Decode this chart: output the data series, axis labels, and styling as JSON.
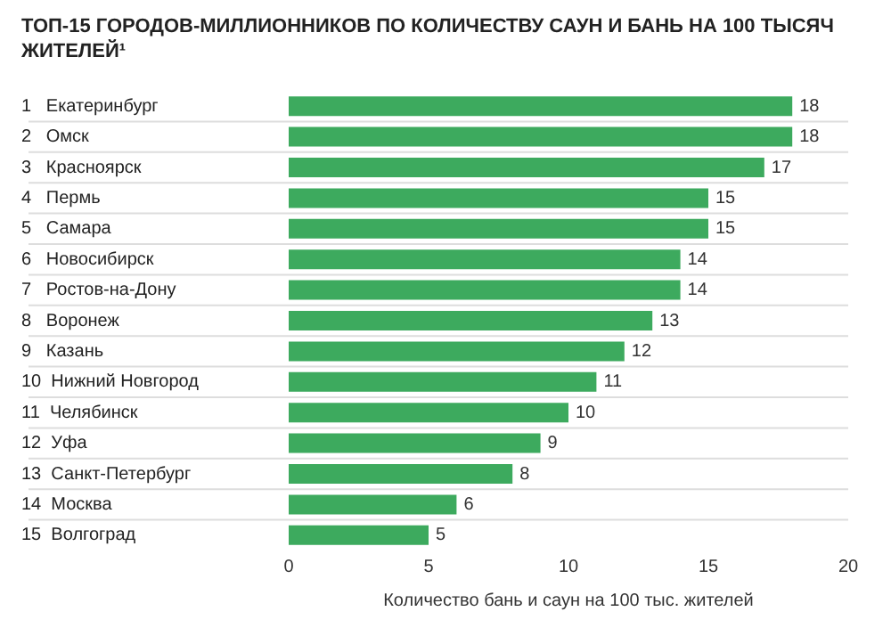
{
  "chart_data": {
    "type": "bar",
    "orientation": "horizontal",
    "title": "ТОП-15 ГОРОДОВ-МИЛЛИОННИКОВ ПО КОЛИЧЕСТВУ САУН И БАНЬ НА 100 ТЫСЯЧ ЖИТЕЛЕЙ¹",
    "xlabel": "Количество бань и саун на 100 тыс. жителей",
    "categories": [
      "1   Екатеринбург",
      "2   Омск",
      "3   Красноярск",
      "4   Пермь",
      "5   Самара",
      "6   Новосибирск",
      "7   Ростов-на-Дону",
      "8   Воронеж",
      "9   Казань",
      "10  Нижний Новгород",
      "11  Челябинск",
      "12  Уфа",
      "13  Санкт-Петербург",
      "14  Москва",
      "15  Волгоград"
    ],
    "values": [
      18,
      18,
      17,
      15,
      15,
      14,
      14,
      13,
      12,
      11,
      10,
      9,
      8,
      6,
      5
    ],
    "color": "#3daa5e",
    "xlim": [
      0,
      20
    ],
    "xticks": [
      0,
      5,
      10,
      15,
      20
    ],
    "data_labels": true,
    "grid": false,
    "legend": false
  }
}
